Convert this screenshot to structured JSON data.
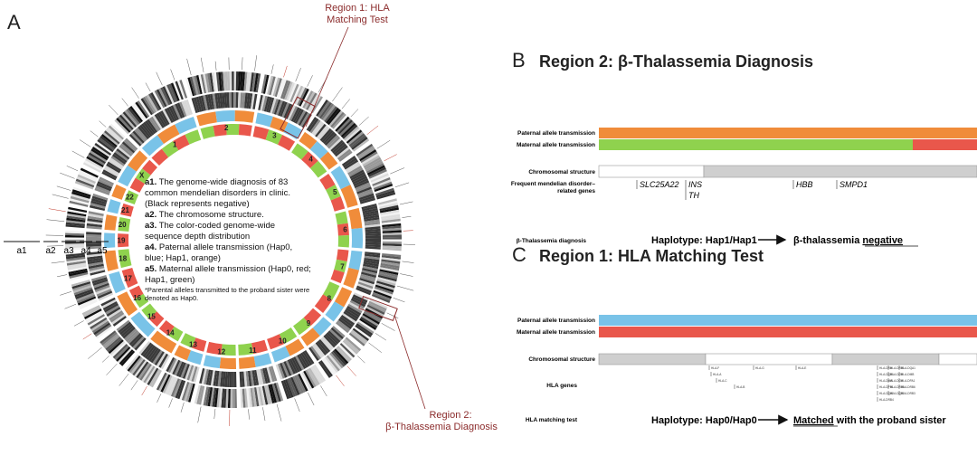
{
  "panel_a": {
    "letter": "A",
    "callout_region1": [
      "Region 1: HLA",
      "Matching Test"
    ],
    "callout_region2": [
      "Region 2:",
      "β-Thalassemia Diagnosis"
    ],
    "track_labels": [
      "a1",
      "a2",
      "a3",
      "a4",
      "a5"
    ],
    "chromosomes": [
      "1",
      "2",
      "3",
      "4",
      "5",
      "6",
      "7",
      "8",
      "9",
      "10",
      "11",
      "12",
      "13",
      "14",
      "15",
      "16",
      "17",
      "18",
      "19",
      "20",
      "21",
      "22",
      "X"
    ],
    "legend": [
      {
        "key": "a1.",
        "text": [
          "The genome-wide diagnosis of 83",
          "common mendelian disorders in clinic.",
          "(Black represents negative)"
        ]
      },
      {
        "key": "a2.",
        "text": [
          "The chromosome structure."
        ]
      },
      {
        "key": "a3.",
        "text": [
          "The color-coded genome-wide",
          "sequence depth distribution"
        ]
      },
      {
        "key": "a4.",
        "text": [
          "Paternal allele transmission (Hap0,",
          "blue; Hap1, orange)"
        ]
      },
      {
        "key": "a5.",
        "text": [
          "Maternal allele transmission (Hap0, red;",
          "Hap1, green)"
        ]
      }
    ],
    "footnote": [
      "*Parental alleles transmitted to the proband sister were",
      "denoted as Hap0."
    ],
    "colors": {
      "hap0_paternal": "#79c3e8",
      "hap1_paternal": "#f08c3a",
      "hap0_maternal": "#e9574b",
      "hap1_maternal": "#8fd24e"
    }
  },
  "panel_b": {
    "letter": "B",
    "title": "Region 2: β-Thalassemia Diagnosis",
    "rows": {
      "paternal": "Paternal allele transmission",
      "maternal": "Maternal allele transmission",
      "chromosomal": "Chromosomal structure",
      "genes": [
        "Frequent mendelian disorder–",
        "related genes"
      ],
      "diagnosis": "β-Thalassemia diagnosis"
    },
    "gene_names": [
      "SLC25A22",
      "INS",
      "TH",
      "HBB",
      "SMPD1"
    ],
    "haplotype": "Haplotype: Hap1/Hap1",
    "result_prefix": "β-thalassemia ",
    "result_word": "negative",
    "maternal_switch_fraction": 0.83
  },
  "panel_c": {
    "letter": "C",
    "title": "Region 1: HLA Matching Test",
    "rows": {
      "paternal": "Paternal allele transmission",
      "maternal": "Maternal allele transmission",
      "chromosomal": "Chromosomal structure",
      "genes": "HLA genes",
      "test": "HLA matching test"
    },
    "hla_genes": [
      "HLA-F",
      "HLA-G",
      "HLA-A",
      "HLA-E",
      "HLA-C",
      "HLA-B",
      "HLA-DRA",
      "HLA-DRB1",
      "HLA-DQA1",
      "HLA-DQB1",
      "HLA-DOB",
      "HLA-DMB",
      "HLA-DMA",
      "HLA-DOA",
      "HLA-DPA1",
      "HLA-DPB1",
      "HLA-DRB5",
      "HLA-DRB6",
      "HLA-DQA2",
      "HLA-DQB2",
      "HLA-DRB3",
      "HLA-DRB4"
    ],
    "haplotype": "Haplotype: Hap0/Hap0",
    "result_word": "Matched",
    "result_suffix": " with the proband sister"
  }
}
